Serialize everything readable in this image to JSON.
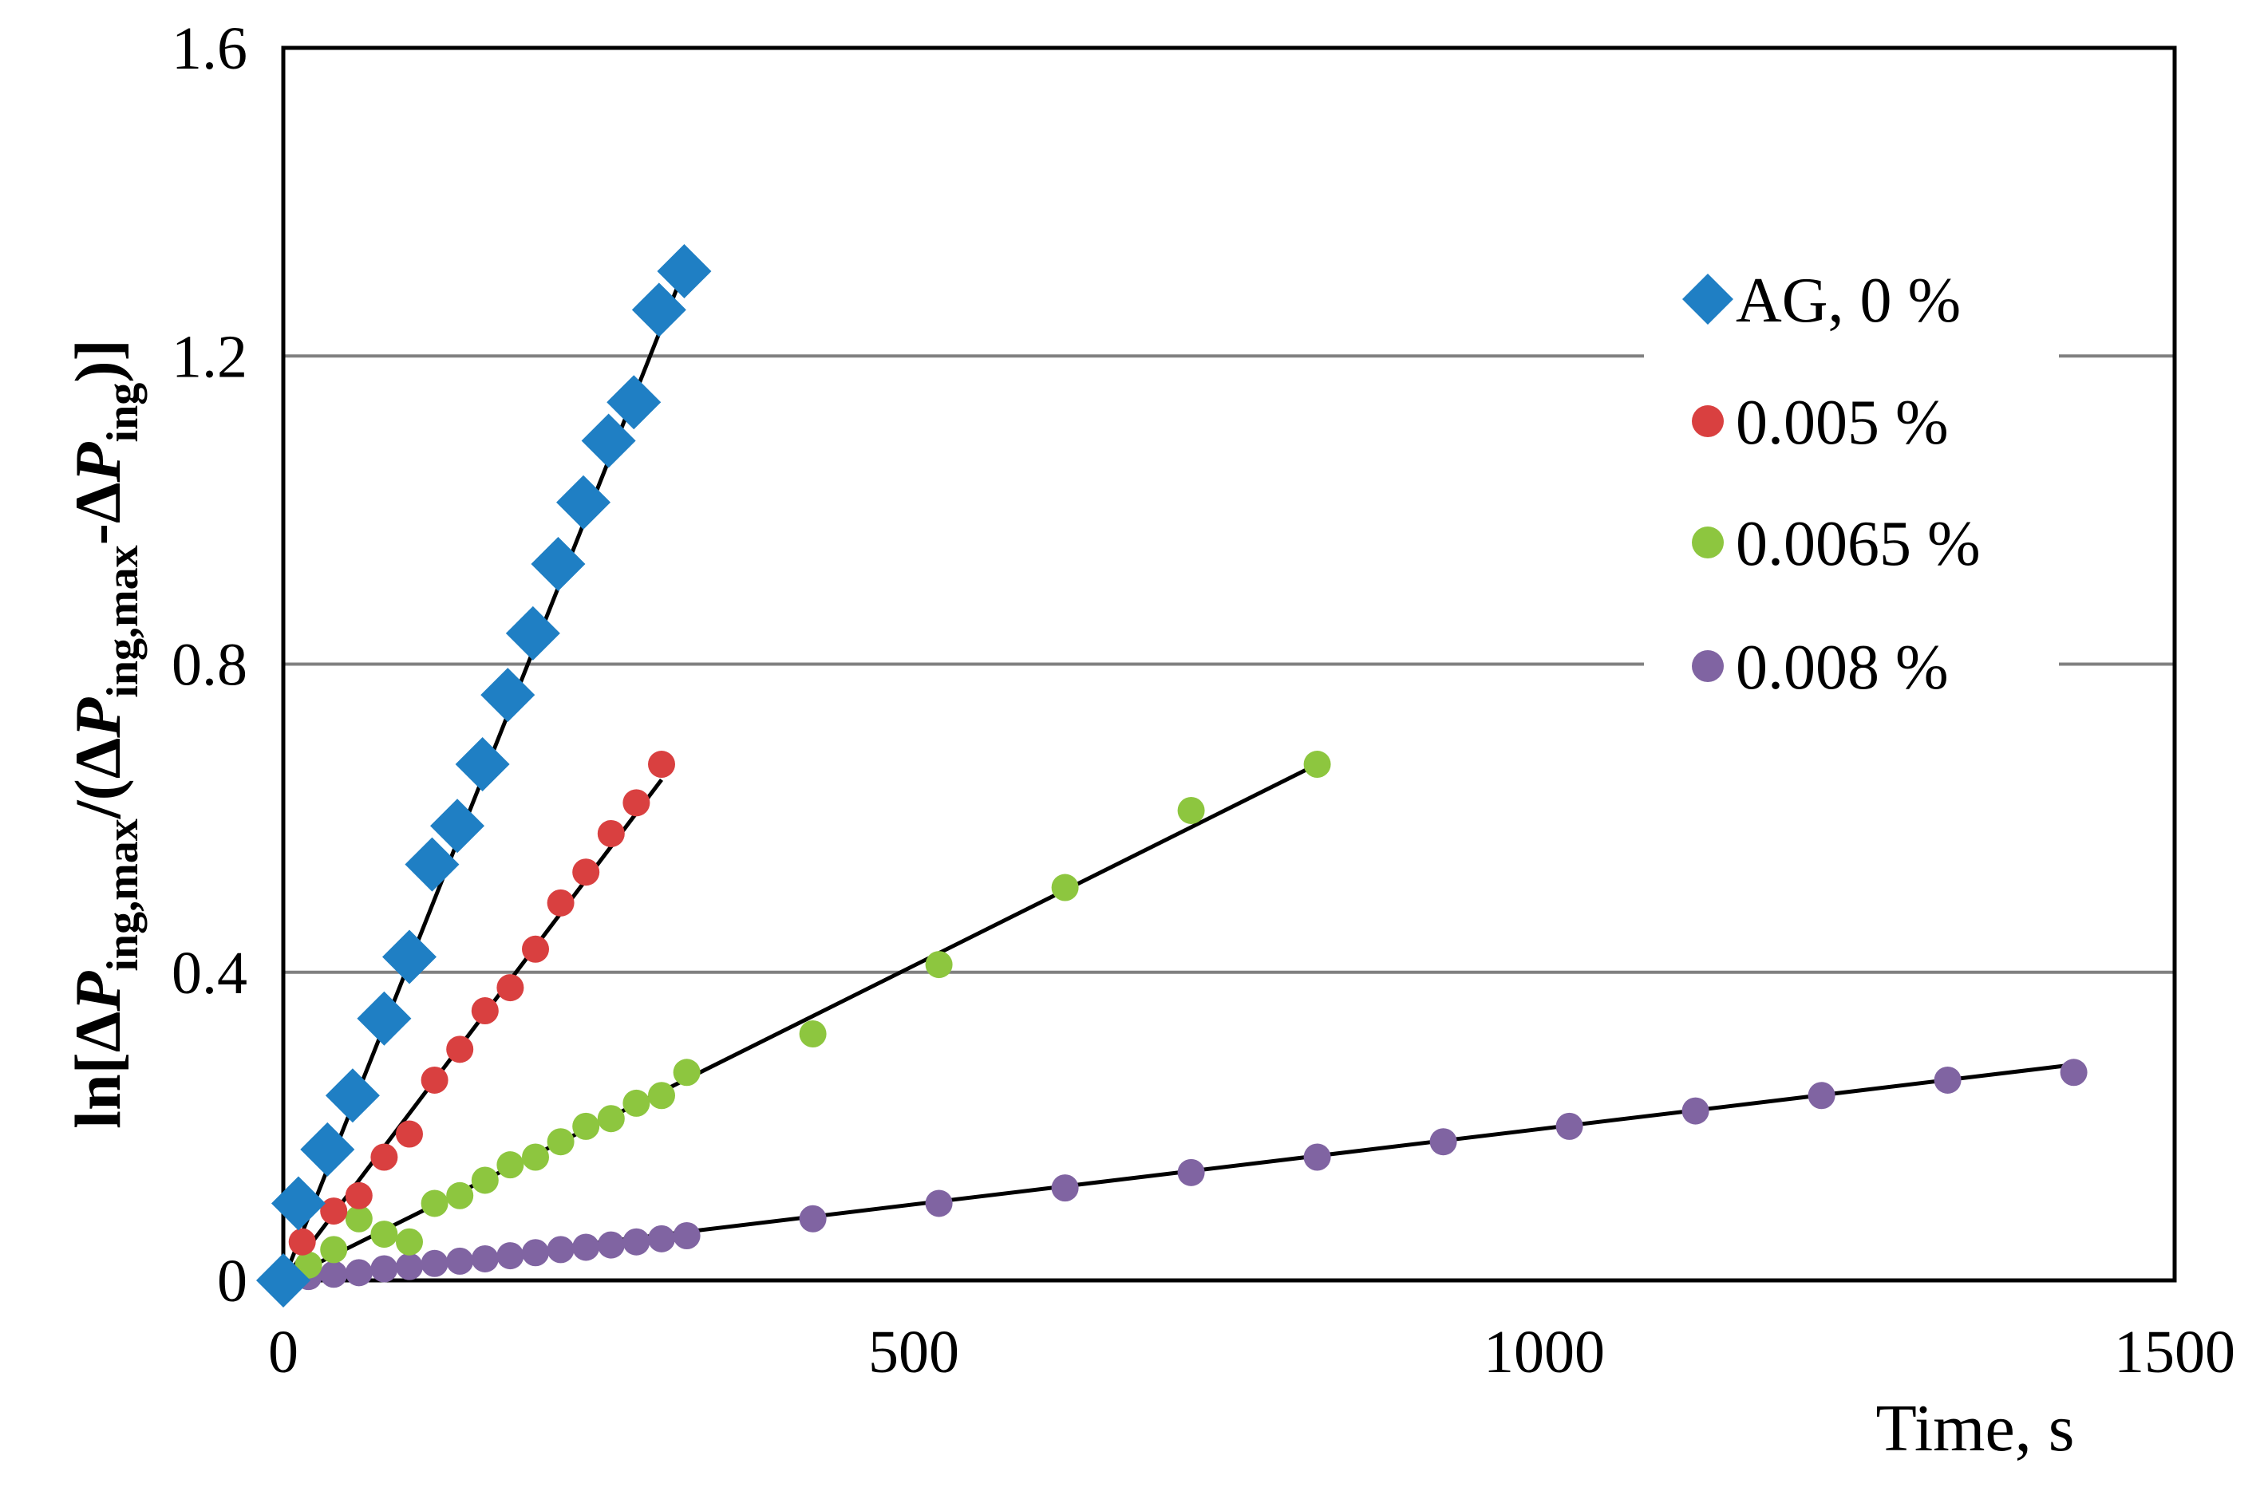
{
  "chart_data": {
    "type": "scatter",
    "title": "",
    "xlabel": "Time, s",
    "ylabel": {
      "prefix": "ln[",
      "delta": "Δ",
      "p": "P",
      "sub1": "ing,max",
      "mid": "/(",
      "sub2": "ing,max",
      "minus": "-",
      "sub3": "ing",
      "suffix": ")]"
    },
    "xlim": [
      0,
      1500
    ],
    "ylim": [
      0,
      1.6
    ],
    "x_ticks": [
      0,
      500,
      1000,
      1500
    ],
    "x_tick_labels": [
      "0",
      "500",
      "1000",
      "1500"
    ],
    "y_ticks": [
      0,
      0.4,
      0.8,
      1.2,
      1.6
    ],
    "y_tick_labels": [
      "0",
      "0.4",
      "0.8",
      "1.2",
      "1.6"
    ],
    "gridlines_y": [
      0.4,
      0.8,
      1.2
    ],
    "legend_position": "top-right",
    "series": [
      {
        "name": "AG,  0 %",
        "marker": "diamond",
        "color": "#1f7fc4",
        "x": [
          0,
          12,
          35,
          55,
          80,
          100,
          118,
          138,
          158,
          178,
          198,
          218,
          238,
          258,
          278,
          298,
          318
        ],
        "y": [
          0,
          0.1,
          0.17,
          0.24,
          0.34,
          0.42,
          0.54,
          0.59,
          0.67,
          0.76,
          0.84,
          0.93,
          1.01,
          1.09,
          1.14,
          1.26,
          1.31
        ],
        "fit": {
          "x": [
            0,
            320
          ],
          "y": [
            0,
            1.32
          ]
        }
      },
      {
        "name": "0.005 %",
        "marker": "circle",
        "color": "#d94040",
        "x": [
          0,
          15,
          40,
          60,
          80,
          100,
          120,
          140,
          160,
          180,
          200,
          220,
          240,
          260,
          280,
          300
        ],
        "y": [
          0,
          0.05,
          0.09,
          0.11,
          0.16,
          0.19,
          0.26,
          0.3,
          0.35,
          0.38,
          0.43,
          0.49,
          0.53,
          0.58,
          0.62,
          0.67
        ],
        "fit": {
          "x": [
            0,
            300
          ],
          "y": [
            0,
            0.65
          ]
        }
      },
      {
        "name": "0.0065 %",
        "marker": "circle",
        "color": "#8dc63f",
        "x": [
          0,
          20,
          40,
          60,
          80,
          100,
          120,
          140,
          160,
          180,
          200,
          220,
          240,
          260,
          280,
          300,
          320,
          420,
          520,
          620,
          720,
          820
        ],
        "y": [
          0,
          0.02,
          0.04,
          0.08,
          0.06,
          0.05,
          0.1,
          0.11,
          0.13,
          0.15,
          0.16,
          0.18,
          0.2,
          0.21,
          0.23,
          0.24,
          0.27,
          0.32,
          0.41,
          0.51,
          0.61,
          0.67
        ],
        "fit": {
          "x": [
            0,
            820
          ],
          "y": [
            0,
            0.67
          ]
        }
      },
      {
        "name": "0.008 %",
        "marker": "circle",
        "color": "#8064a2",
        "x": [
          0,
          20,
          40,
          60,
          80,
          100,
          120,
          140,
          160,
          180,
          200,
          220,
          240,
          260,
          280,
          300,
          320,
          420,
          520,
          620,
          720,
          820,
          920,
          1020,
          1120,
          1220,
          1320,
          1420
        ],
        "y": [
          0,
          0.005,
          0.008,
          0.01,
          0.015,
          0.018,
          0.022,
          0.025,
          0.028,
          0.032,
          0.036,
          0.04,
          0.043,
          0.046,
          0.05,
          0.054,
          0.058,
          0.08,
          0.1,
          0.12,
          0.14,
          0.16,
          0.18,
          0.2,
          0.22,
          0.24,
          0.26,
          0.27
        ],
        "fit": {
          "x": [
            0,
            1420
          ],
          "y": [
            0,
            0.28
          ]
        }
      }
    ]
  }
}
